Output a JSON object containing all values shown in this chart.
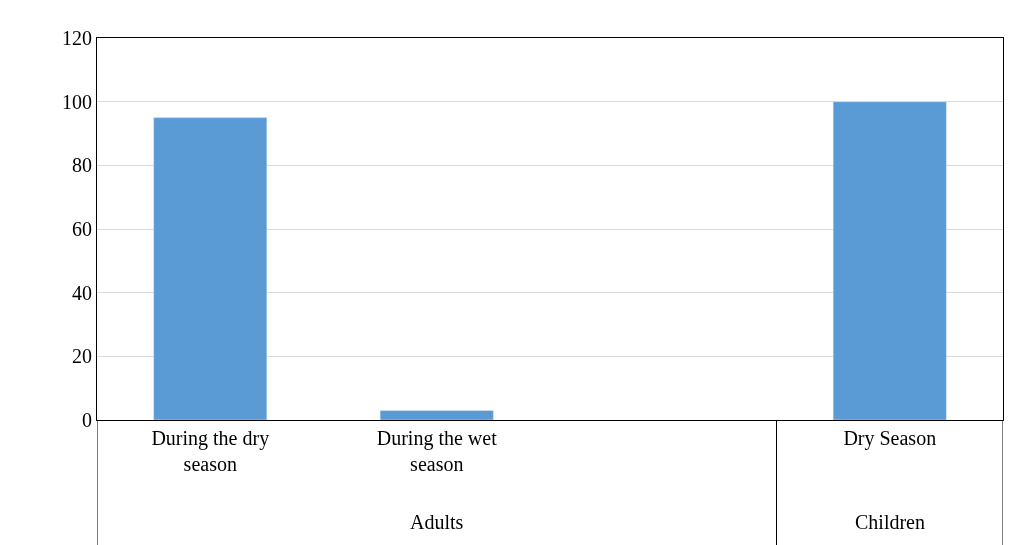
{
  "chart_data": {
    "type": "bar",
    "categories": [
      "During the dry season",
      "During the wet season",
      null,
      "Dry Season"
    ],
    "values": [
      95,
      3,
      null,
      100
    ],
    "color": "#5b9bd5",
    "ylim": [
      0,
      120
    ],
    "yticks": [
      0,
      20,
      40,
      60,
      80,
      100,
      120
    ],
    "grid": "y",
    "annotations": [
      "Adults",
      "Children"
    ]
  }
}
